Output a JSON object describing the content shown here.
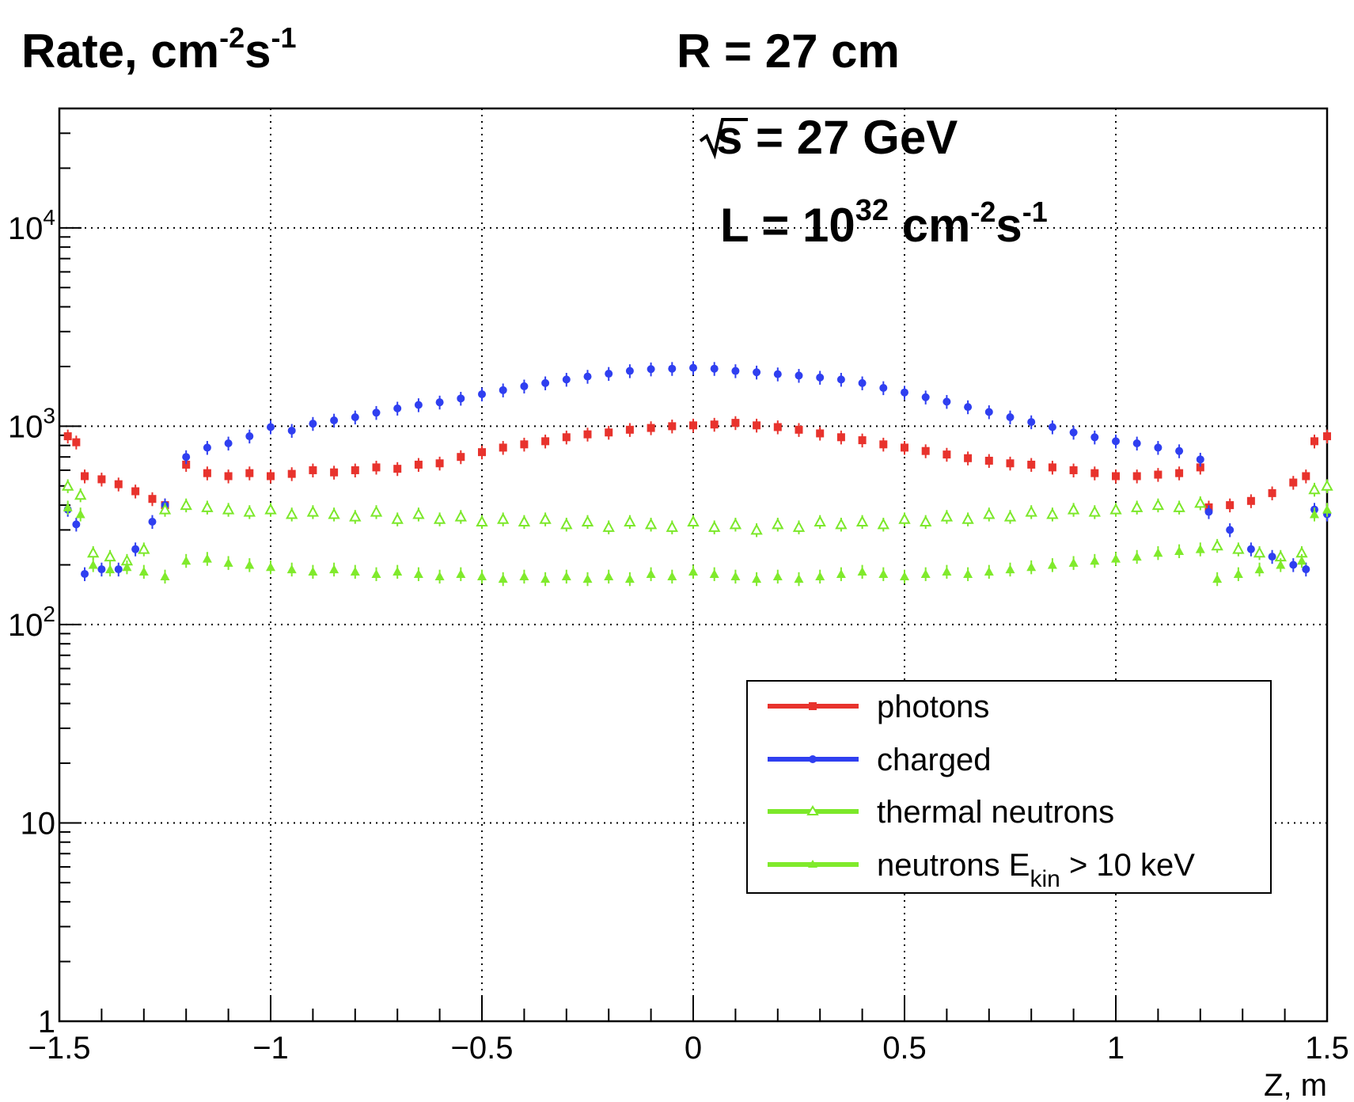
{
  "chart_data": {
    "type": "scatter",
    "title": "R = 27 cm",
    "ylabel": "Rate, cm",
    "ylabel_sup1": "-2",
    "ylabel_mid": "s",
    "ylabel_sup2": "-1",
    "xlabel": "Z, m",
    "annotations": {
      "sqrt_s": "s = 27 GeV",
      "lumi_prefix": "L = 10",
      "lumi_exp": "32",
      "lumi_unit": " cm",
      "lumi_unit_exp1": "-2",
      "lumi_s": "s",
      "lumi_unit_exp2": "-1"
    },
    "xlim": [
      -1.5,
      1.5
    ],
    "ylim": [
      1,
      40000
    ],
    "yscale": "log",
    "grid": true,
    "legend_position": "bottom-right",
    "x_ticks": [
      {
        "value": -1.5,
        "label": "−1.5"
      },
      {
        "value": -1,
        "label": "−1"
      },
      {
        "value": -0.5,
        "label": "−0.5"
      },
      {
        "value": 0,
        "label": "0"
      },
      {
        "value": 0.5,
        "label": "0.5"
      },
      {
        "value": 1,
        "label": "1"
      },
      {
        "value": 1.5,
        "label": "1.5"
      }
    ],
    "y_ticks": [
      {
        "value": 1,
        "label": "1",
        "sup": ""
      },
      {
        "value": 10,
        "label": "10",
        "sup": ""
      },
      {
        "value": 100,
        "label": "10",
        "sup": "2"
      },
      {
        "value": 1000,
        "label": "10",
        "sup": "3"
      },
      {
        "value": 10000,
        "label": "10",
        "sup": "4"
      }
    ],
    "series": [
      {
        "name": "photons",
        "color": "#e8332d",
        "marker": "square",
        "points": [
          [
            -1.48,
            890
          ],
          [
            -1.46,
            830
          ],
          [
            -1.44,
            560
          ],
          [
            -1.4,
            540
          ],
          [
            -1.36,
            510
          ],
          [
            -1.32,
            470
          ],
          [
            -1.28,
            430
          ],
          [
            -1.25,
            400
          ],
          [
            -1.2,
            640
          ],
          [
            -1.15,
            580
          ],
          [
            -1.1,
            560
          ],
          [
            -1.05,
            580
          ],
          [
            -1.0,
            560
          ],
          [
            -0.95,
            575
          ],
          [
            -0.9,
            600
          ],
          [
            -0.85,
            585
          ],
          [
            -0.8,
            600
          ],
          [
            -0.75,
            620
          ],
          [
            -0.7,
            610
          ],
          [
            -0.65,
            640
          ],
          [
            -0.6,
            650
          ],
          [
            -0.55,
            700
          ],
          [
            -0.5,
            740
          ],
          [
            -0.45,
            780
          ],
          [
            -0.4,
            810
          ],
          [
            -0.35,
            840
          ],
          [
            -0.3,
            880
          ],
          [
            -0.25,
            910
          ],
          [
            -0.2,
            930
          ],
          [
            -0.15,
            960
          ],
          [
            -0.1,
            980
          ],
          [
            -0.05,
            1000
          ],
          [
            0.0,
            1010
          ],
          [
            0.05,
            1020
          ],
          [
            0.1,
            1040
          ],
          [
            0.15,
            1010
          ],
          [
            0.2,
            990
          ],
          [
            0.25,
            960
          ],
          [
            0.3,
            920
          ],
          [
            0.35,
            880
          ],
          [
            0.4,
            850
          ],
          [
            0.45,
            810
          ],
          [
            0.5,
            780
          ],
          [
            0.55,
            750
          ],
          [
            0.6,
            720
          ],
          [
            0.65,
            690
          ],
          [
            0.7,
            670
          ],
          [
            0.75,
            650
          ],
          [
            0.8,
            640
          ],
          [
            0.85,
            620
          ],
          [
            0.9,
            600
          ],
          [
            0.95,
            580
          ],
          [
            1.0,
            560
          ],
          [
            1.05,
            560
          ],
          [
            1.1,
            570
          ],
          [
            1.15,
            580
          ],
          [
            1.2,
            620
          ],
          [
            1.22,
            390
          ],
          [
            1.27,
            400
          ],
          [
            1.32,
            420
          ],
          [
            1.37,
            460
          ],
          [
            1.42,
            520
          ],
          [
            1.45,
            560
          ],
          [
            1.47,
            840
          ],
          [
            1.5,
            890
          ]
        ]
      },
      {
        "name": "charged",
        "color": "#2f3ff0",
        "marker": "circle",
        "points": [
          [
            -1.48,
            380
          ],
          [
            -1.46,
            320
          ],
          [
            -1.44,
            180
          ],
          [
            -1.4,
            190
          ],
          [
            -1.36,
            190
          ],
          [
            -1.32,
            240
          ],
          [
            -1.28,
            330
          ],
          [
            -1.25,
            400
          ],
          [
            -1.2,
            700
          ],
          [
            -1.15,
            780
          ],
          [
            -1.1,
            820
          ],
          [
            -1.05,
            890
          ],
          [
            -1.0,
            990
          ],
          [
            -0.95,
            950
          ],
          [
            -0.9,
            1030
          ],
          [
            -0.85,
            1070
          ],
          [
            -0.8,
            1110
          ],
          [
            -0.75,
            1170
          ],
          [
            -0.7,
            1230
          ],
          [
            -0.65,
            1280
          ],
          [
            -0.6,
            1320
          ],
          [
            -0.55,
            1380
          ],
          [
            -0.5,
            1450
          ],
          [
            -0.45,
            1520
          ],
          [
            -0.4,
            1590
          ],
          [
            -0.35,
            1650
          ],
          [
            -0.3,
            1720
          ],
          [
            -0.25,
            1780
          ],
          [
            -0.2,
            1840
          ],
          [
            -0.15,
            1900
          ],
          [
            -0.1,
            1940
          ],
          [
            -0.05,
            1950
          ],
          [
            0.0,
            1970
          ],
          [
            0.05,
            1950
          ],
          [
            0.1,
            1900
          ],
          [
            0.15,
            1870
          ],
          [
            0.2,
            1830
          ],
          [
            0.25,
            1800
          ],
          [
            0.3,
            1760
          ],
          [
            0.35,
            1720
          ],
          [
            0.4,
            1650
          ],
          [
            0.45,
            1560
          ],
          [
            0.5,
            1480
          ],
          [
            0.55,
            1400
          ],
          [
            0.6,
            1330
          ],
          [
            0.65,
            1250
          ],
          [
            0.7,
            1180
          ],
          [
            0.75,
            1110
          ],
          [
            0.8,
            1050
          ],
          [
            0.85,
            990
          ],
          [
            0.9,
            930
          ],
          [
            0.95,
            880
          ],
          [
            1.0,
            840
          ],
          [
            1.05,
            820
          ],
          [
            1.1,
            780
          ],
          [
            1.15,
            750
          ],
          [
            1.2,
            680
          ],
          [
            1.22,
            370
          ],
          [
            1.27,
            300
          ],
          [
            1.32,
            240
          ],
          [
            1.37,
            220
          ],
          [
            1.42,
            200
          ],
          [
            1.45,
            190
          ],
          [
            1.47,
            380
          ],
          [
            1.5,
            360
          ]
        ]
      },
      {
        "name": "thermal neutrons",
        "color": "#7ce82a",
        "marker": "open-triangle",
        "points": [
          [
            -1.48,
            500
          ],
          [
            -1.45,
            450
          ],
          [
            -1.42,
            230
          ],
          [
            -1.38,
            220
          ],
          [
            -1.34,
            210
          ],
          [
            -1.3,
            240
          ],
          [
            -1.25,
            380
          ],
          [
            -1.2,
            400
          ],
          [
            -1.15,
            390
          ],
          [
            -1.1,
            380
          ],
          [
            -1.05,
            370
          ],
          [
            -1.0,
            380
          ],
          [
            -0.95,
            360
          ],
          [
            -0.9,
            370
          ],
          [
            -0.85,
            360
          ],
          [
            -0.8,
            350
          ],
          [
            -0.75,
            370
          ],
          [
            -0.7,
            340
          ],
          [
            -0.65,
            360
          ],
          [
            -0.6,
            340
          ],
          [
            -0.55,
            350
          ],
          [
            -0.5,
            330
          ],
          [
            -0.45,
            340
          ],
          [
            -0.4,
            330
          ],
          [
            -0.35,
            340
          ],
          [
            -0.3,
            320
          ],
          [
            -0.25,
            330
          ],
          [
            -0.2,
            310
          ],
          [
            -0.15,
            330
          ],
          [
            -0.1,
            320
          ],
          [
            -0.05,
            310
          ],
          [
            0.0,
            330
          ],
          [
            0.05,
            310
          ],
          [
            0.1,
            320
          ],
          [
            0.15,
            300
          ],
          [
            0.2,
            320
          ],
          [
            0.25,
            310
          ],
          [
            0.3,
            330
          ],
          [
            0.35,
            320
          ],
          [
            0.4,
            330
          ],
          [
            0.45,
            320
          ],
          [
            0.5,
            340
          ],
          [
            0.55,
            330
          ],
          [
            0.6,
            350
          ],
          [
            0.65,
            340
          ],
          [
            0.7,
            360
          ],
          [
            0.75,
            350
          ],
          [
            0.8,
            370
          ],
          [
            0.85,
            360
          ],
          [
            0.9,
            380
          ],
          [
            0.95,
            370
          ],
          [
            1.0,
            380
          ],
          [
            1.05,
            390
          ],
          [
            1.1,
            400
          ],
          [
            1.15,
            390
          ],
          [
            1.2,
            410
          ],
          [
            1.24,
            250
          ],
          [
            1.29,
            240
          ],
          [
            1.34,
            230
          ],
          [
            1.39,
            220
          ],
          [
            1.44,
            230
          ],
          [
            1.47,
            480
          ],
          [
            1.5,
            500
          ]
        ]
      },
      {
        "name": "neutrons E_kin > 10 keV",
        "name_main": "neutrons E",
        "name_sub": "kin",
        "name_rest": " > 10 keV",
        "color": "#80ea2c",
        "marker": "filled-triangle",
        "points": [
          [
            -1.48,
            390
          ],
          [
            -1.45,
            360
          ],
          [
            -1.42,
            200
          ],
          [
            -1.38,
            190
          ],
          [
            -1.34,
            195
          ],
          [
            -1.3,
            185
          ],
          [
            -1.25,
            175
          ],
          [
            -1.2,
            210
          ],
          [
            -1.15,
            215
          ],
          [
            -1.1,
            205
          ],
          [
            -1.05,
            200
          ],
          [
            -1.0,
            195
          ],
          [
            -0.95,
            190
          ],
          [
            -0.9,
            185
          ],
          [
            -0.85,
            190
          ],
          [
            -0.8,
            185
          ],
          [
            -0.75,
            180
          ],
          [
            -0.7,
            185
          ],
          [
            -0.65,
            180
          ],
          [
            -0.6,
            175
          ],
          [
            -0.55,
            180
          ],
          [
            -0.5,
            175
          ],
          [
            -0.45,
            170
          ],
          [
            -0.4,
            175
          ],
          [
            -0.35,
            170
          ],
          [
            -0.3,
            175
          ],
          [
            -0.25,
            170
          ],
          [
            -0.2,
            175
          ],
          [
            -0.15,
            170
          ],
          [
            -0.1,
            180
          ],
          [
            -0.05,
            175
          ],
          [
            0.0,
            185
          ],
          [
            0.05,
            180
          ],
          [
            0.1,
            175
          ],
          [
            0.15,
            170
          ],
          [
            0.2,
            175
          ],
          [
            0.25,
            170
          ],
          [
            0.3,
            175
          ],
          [
            0.35,
            180
          ],
          [
            0.4,
            185
          ],
          [
            0.45,
            180
          ],
          [
            0.5,
            175
          ],
          [
            0.55,
            180
          ],
          [
            0.6,
            185
          ],
          [
            0.65,
            180
          ],
          [
            0.7,
            185
          ],
          [
            0.75,
            190
          ],
          [
            0.8,
            195
          ],
          [
            0.85,
            200
          ],
          [
            0.9,
            205
          ],
          [
            0.95,
            210
          ],
          [
            1.0,
            215
          ],
          [
            1.05,
            220
          ],
          [
            1.1,
            230
          ],
          [
            1.15,
            235
          ],
          [
            1.2,
            240
          ],
          [
            1.24,
            170
          ],
          [
            1.29,
            180
          ],
          [
            1.34,
            190
          ],
          [
            1.39,
            200
          ],
          [
            1.44,
            210
          ],
          [
            1.47,
            360
          ],
          [
            1.5,
            380
          ]
        ]
      }
    ]
  }
}
